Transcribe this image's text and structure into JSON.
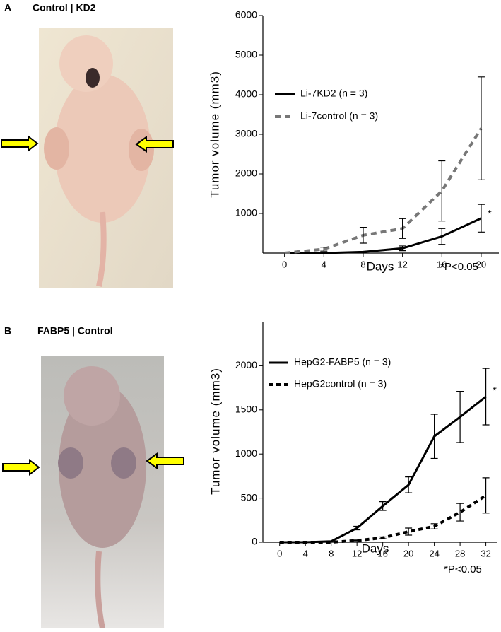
{
  "panels": [
    {
      "label": "A",
      "photo_caption": "Control | KD2"
    },
    {
      "label": "B",
      "photo_caption": "FABP5 | Control"
    }
  ],
  "chart_data": [
    {
      "type": "line",
      "x_label": "Days",
      "y_label": "Tumor volume (mm3)",
      "x": [
        0,
        4,
        8,
        12,
        16,
        20
      ],
      "xlim": [
        -2.2,
        21.8
      ],
      "xticks": [
        0,
        4,
        8,
        12,
        16,
        20
      ],
      "ylim": [
        0,
        6000
      ],
      "yticks": [
        1000,
        2000,
        3000,
        4000,
        5000,
        6000
      ],
      "series": [
        {
          "name": "Li-7KD2 (n = 3)",
          "color": "#000000",
          "style": "solid",
          "values": [
            0,
            0,
            30,
            120,
            420,
            880
          ],
          "errors": [
            null,
            null,
            null,
            60,
            200,
            350
          ]
        },
        {
          "name": "Li-7control (n = 3)",
          "color": "#777777",
          "style": "dashed",
          "values": [
            0,
            100,
            450,
            620,
            1570,
            3150
          ],
          "errors": [
            null,
            50,
            200,
            250,
            760,
            1300
          ]
        }
      ],
      "annotations": [
        "*",
        "*P<0.05"
      ]
    },
    {
      "type": "line",
      "x_label": "Days",
      "y_label": "Tumor volume (mm3)",
      "x": [
        0,
        4,
        8,
        12,
        16,
        20,
        24,
        28,
        32
      ],
      "xlim": [
        -2.6,
        33.8
      ],
      "xticks": [
        0,
        4,
        8,
        12,
        16,
        20,
        24,
        28,
        32
      ],
      "ylim": [
        0,
        2500
      ],
      "yticks": [
        0,
        500,
        1000,
        1500,
        2000
      ],
      "series": [
        {
          "name": "HepG2-FABP5 (n = 3)",
          "color": "#000000",
          "style": "solid",
          "values": [
            0,
            0,
            10,
            160,
            410,
            650,
            1200,
            1420,
            1650
          ],
          "errors": [
            null,
            null,
            null,
            20,
            50,
            90,
            250,
            290,
            320
          ]
        },
        {
          "name": "HepG2control (n = 3)",
          "color": "#000000",
          "style": "dashed",
          "values": [
            0,
            0,
            0,
            20,
            50,
            120,
            180,
            340,
            530
          ],
          "errors": [
            null,
            null,
            null,
            5,
            10,
            40,
            30,
            100,
            200
          ]
        }
      ],
      "annotations": [
        "*",
        "*P<0.05"
      ]
    }
  ]
}
